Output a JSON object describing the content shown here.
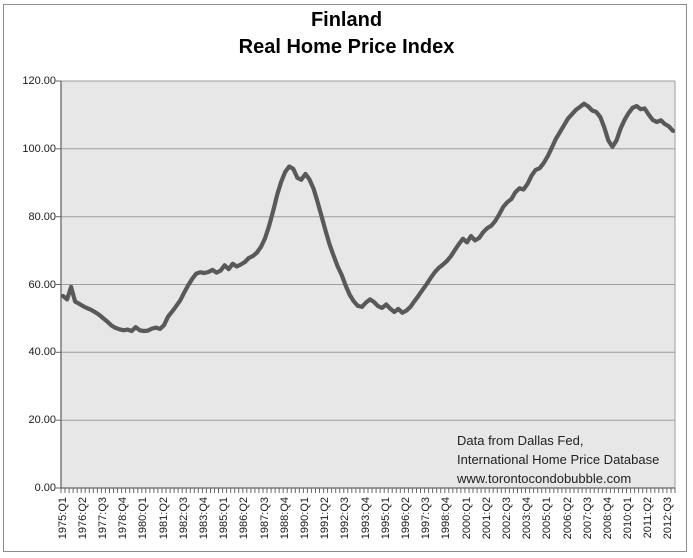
{
  "title": {
    "line1": "Finland",
    "line2": "Real Home Price Index"
  },
  "annotation": {
    "lines": [
      "Data from Dallas Fed,",
      "International Home Price Database",
      "www.torontocondobubble.com"
    ]
  },
  "colors": {
    "line": "#595959",
    "plot_bg": "#e7e7e7",
    "gridline": "#9d9d9d",
    "axis": "#666666",
    "tick": "#666666",
    "frame_border": "#8c8c8c",
    "text": "#1a1a1a"
  },
  "chart_data": {
    "type": "line",
    "title": "Finland Real Home Price Index",
    "xlabel": "",
    "ylabel": "",
    "ylim": [
      0,
      120
    ],
    "y_tick_step": 20,
    "y_tick_labels": [
      "0.00",
      "20.00",
      "40.00",
      "60.00",
      "80.00",
      "100.00",
      "120.00"
    ],
    "grid": "horizontal",
    "legend": "none",
    "x_frequency": "quarterly",
    "x_start": "1975:Q1",
    "x_end": "2012:Q4",
    "x_label_every_n_quarters": 5,
    "x_tick_labels": [
      "1975:Q1",
      "1976:Q2",
      "1977:Q3",
      "1978:Q4",
      "1980:Q1",
      "1981:Q2",
      "1982:Q3",
      "1983:Q4",
      "1985:Q1",
      "1986:Q2",
      "1987:Q3",
      "1988:Q4",
      "1990:Q1",
      "1991:Q2",
      "1992:Q3",
      "1993:Q4",
      "1995:Q1",
      "1996:Q2",
      "1997:Q3",
      "1998:Q4",
      "2000:Q1",
      "2001:Q2",
      "2002:Q3",
      "2003:Q4",
      "2005:Q1",
      "2006:Q2",
      "2007:Q3",
      "2008:Q4",
      "2010:Q1",
      "2011:Q2",
      "2012:Q3"
    ],
    "series": [
      {
        "name": "Finland Real Home Price Index",
        "values": [
          56.6,
          55.6,
          59.3,
          55.0,
          54.3,
          53.6,
          53.0,
          52.5,
          51.8,
          51.0,
          50.0,
          49.0,
          47.9,
          47.2,
          46.8,
          46.5,
          46.7,
          46.3,
          47.4,
          46.5,
          46.3,
          46.4,
          47.0,
          47.3,
          46.9,
          48.0,
          50.5,
          52.0,
          53.6,
          55.3,
          57.6,
          59.8,
          61.7,
          63.2,
          63.6,
          63.4,
          63.7,
          64.3,
          63.5,
          64.1,
          65.7,
          64.5,
          66.1,
          65.3,
          65.9,
          66.6,
          67.8,
          68.4,
          69.4,
          71.1,
          73.6,
          77.2,
          81.6,
          86.4,
          90.3,
          93.2,
          94.8,
          94.1,
          91.5,
          90.9,
          92.6,
          91.0,
          88.3,
          84.4,
          80.2,
          75.8,
          71.8,
          68.4,
          65.3,
          62.8,
          59.6,
          56.9,
          55.0,
          53.7,
          53.4,
          54.7,
          55.6,
          54.8,
          53.6,
          53.1,
          54.1,
          52.9,
          51.9,
          52.8,
          51.7,
          52.3,
          53.4,
          55.1,
          56.7,
          58.4,
          60.1,
          61.9,
          63.6,
          64.9,
          65.8,
          66.9,
          68.3,
          70.1,
          71.9,
          73.5,
          72.4,
          74.3,
          73.0,
          73.7,
          75.4,
          76.6,
          77.3,
          78.7,
          80.7,
          82.9,
          84.3,
          85.2,
          87.2,
          88.4,
          88.0,
          89.7,
          92.1,
          93.8,
          94.3,
          95.8,
          97.9,
          100.3,
          102.9,
          104.9,
          106.9,
          108.9,
          110.2,
          111.5,
          112.4,
          113.3,
          112.5,
          111.3,
          110.9,
          109.4,
          106.3,
          102.5,
          100.6,
          102.4,
          105.9,
          108.5,
          110.5,
          112.1,
          112.6,
          111.7,
          111.9,
          110.1,
          108.5,
          107.9,
          108.4,
          107.3,
          106.6,
          105.3
        ]
      }
    ]
  }
}
